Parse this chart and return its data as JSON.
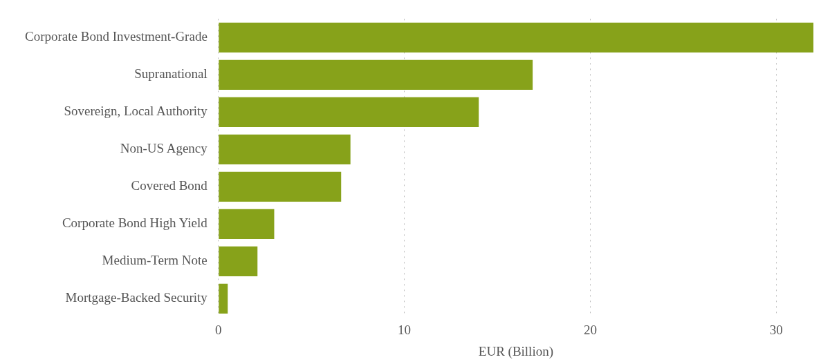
{
  "chart_data": {
    "type": "bar",
    "orientation": "horizontal",
    "xlabel": "EUR (Billion)",
    "categories": [
      "Corporate Bond Investment-Grade",
      "Supranational",
      "Sovereign, Local Authority",
      "Non-US Agency",
      "Covered Bond",
      "Corporate Bond High Yield",
      "Medium-Term Note",
      "Mortgage-Backed Security"
    ],
    "values": [
      32.0,
      16.9,
      14.0,
      7.1,
      6.6,
      3.0,
      2.1,
      0.5
    ],
    "color": "#87a21a",
    "xlim": [
      0,
      32
    ],
    "xticks": [
      0,
      10,
      20,
      30
    ],
    "grid": "x",
    "legend": false
  }
}
